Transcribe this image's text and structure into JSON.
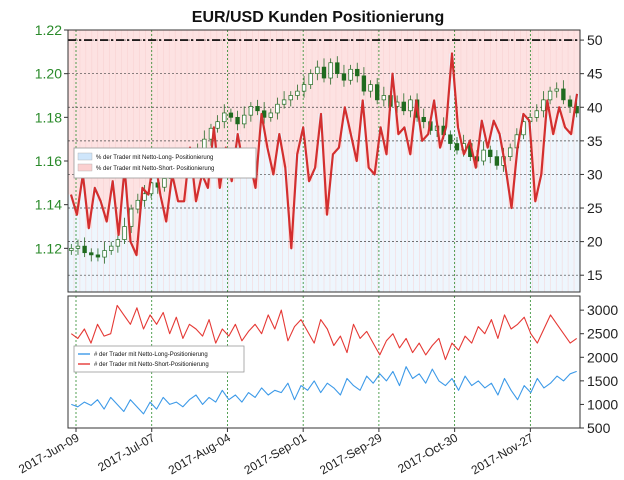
{
  "chart_data": [
    {
      "type": "line",
      "title": "EUR/USD Kunden Positionierung",
      "x_ticks": [
        "2017-Jun-09",
        "2017-Jul-07",
        "2017-Aug-04",
        "2017-Sep-01",
        "2017-Sep-29",
        "2017-Oct-30",
        "2017-Nov-27"
      ],
      "left_axis": {
        "ylim": [
          1.1,
          1.22
        ],
        "ticks": [
          "1.12",
          "1.14",
          "1.16",
          "1.18",
          "1.20",
          "1.22"
        ],
        "color": "#2a8a2a"
      },
      "right_axis": {
        "ylim": [
          12.5,
          51.5
        ],
        "ticks": [
          "15",
          "20",
          "25",
          "30",
          "35",
          "40",
          "45",
          "50"
        ]
      },
      "legend": {
        "placement": "center-left",
        "entries": [
          {
            "label": "% der Trader mit Netto-Long- Positionierung",
            "color": "#cfe6fb"
          },
          {
            "label": "% der Trader mit Netto-Short- Positionierung",
            "color": "#fbd0d0"
          }
        ]
      },
      "price_series": {
        "name": "EUR/USD",
        "color": "#2a8a2a",
        "values": [
          1.12,
          1.121,
          1.118,
          1.117,
          1.116,
          1.119,
          1.121,
          1.124,
          1.13,
          1.138,
          1.142,
          1.145,
          1.15,
          1.148,
          1.152,
          1.158,
          1.16,
          1.162,
          1.16,
          1.165,
          1.17,
          1.175,
          1.178,
          1.182,
          1.18,
          1.177,
          1.181,
          1.185,
          1.183,
          1.18,
          1.182,
          1.186,
          1.188,
          1.19,
          1.192,
          1.195,
          1.2,
          1.203,
          1.198,
          1.205,
          1.2,
          1.197,
          1.202,
          1.199,
          1.192,
          1.195,
          1.188,
          1.19,
          1.185,
          1.187,
          1.183,
          1.188,
          1.18,
          1.178,
          1.174,
          1.176,
          1.172,
          1.168,
          1.165,
          1.168,
          1.162,
          1.16,
          1.165,
          1.162,
          1.158,
          1.162,
          1.166,
          1.172,
          1.178,
          1.18,
          1.183,
          1.188,
          1.192,
          1.193,
          1.188,
          1.185,
          1.182
        ]
      },
      "short_pct_series": {
        "name": "% der Trader mit Netto-Short- Positionierung",
        "color": "#d32f2f",
        "values": [
          27,
          24,
          30,
          22,
          28,
          26,
          23,
          29,
          21,
          31,
          20,
          18,
          28,
          27,
          33,
          27,
          23,
          30,
          26,
          26,
          34,
          26,
          30,
          28,
          37,
          28,
          34,
          29,
          36,
          31,
          32,
          28,
          39,
          34,
          30,
          36,
          31,
          19,
          33,
          37,
          29,
          31,
          39,
          24,
          33,
          34,
          40,
          36,
          32,
          41,
          31,
          30,
          37,
          33,
          45,
          36,
          37,
          33,
          41,
          35,
          36,
          41,
          34,
          37,
          48,
          37,
          33,
          35,
          31,
          38,
          34,
          38,
          36,
          31,
          25,
          34,
          39,
          38,
          26,
          30,
          41,
          36,
          40,
          37,
          36,
          42
        ]
      },
      "reference_line": {
        "value": 50,
        "style": "dash-dot"
      }
    },
    {
      "type": "line",
      "right_axis": {
        "ylim": [
          500,
          3300
        ],
        "ticks": [
          "500",
          "1000",
          "1500",
          "2000",
          "2500",
          "3000"
        ]
      },
      "legend": {
        "placement": "center-left",
        "entries": [
          {
            "label": "# der Trader mit Netto-Long-Positionierung",
            "color": "#3d9ae8"
          },
          {
            "label": "# der Trader mit Netto-Short-Positionierung",
            "color": "#e53935"
          }
        ]
      },
      "series": [
        {
          "name": "# der Trader mit Netto-Long-Positionierung",
          "color": "#3d9ae8",
          "values": [
            1000,
            950,
            1050,
            980,
            1100,
            900,
            1150,
            1000,
            850,
            1100,
            950,
            800,
            1050,
            900,
            1150,
            1000,
            1050,
            950,
            1100,
            1200,
            1000,
            1150,
            1050,
            1300,
            1100,
            1200,
            1050,
            1250,
            1150,
            1350,
            1200,
            1300,
            1250,
            1450,
            1100,
            1400,
            1300,
            1500,
            1250,
            1450,
            1350,
            1200,
            1550,
            1400,
            1300,
            1600,
            1450,
            1650,
            1500,
            1700,
            1400,
            1800,
            1550,
            1650,
            1450,
            1750,
            1500,
            1400,
            1550,
            1300,
            1600,
            1400,
            1500,
            1350,
            1450,
            1200,
            1550,
            1300,
            1100,
            1400,
            1250,
            1550,
            1350,
            1450,
            1600,
            1500,
            1650,
            1700
          ]
        },
        {
          "name": "# der Trader mit Netto-Short-Positionierung",
          "color": "#e53935",
          "values": [
            2500,
            2400,
            2600,
            2300,
            2700,
            2450,
            2500,
            3100,
            2900,
            2700,
            3050,
            2600,
            2900,
            2700,
            2950,
            2500,
            2850,
            2400,
            2700,
            2600,
            2450,
            2800,
            2300,
            2600,
            2450,
            2700,
            2350,
            2550,
            2700,
            2500,
            2900,
            2600,
            3000,
            2350,
            2650,
            2800,
            2550,
            2300,
            2800,
            2600,
            2250,
            2450,
            2100,
            2700,
            2400,
            2550,
            2300,
            2050,
            2350,
            2500,
            2200,
            2400,
            2100,
            2300,
            2050,
            2250,
            2400,
            1950,
            2300,
            2150,
            2450,
            2300,
            2650,
            2500,
            2800,
            2400,
            2900,
            2600,
            2700,
            2850,
            2500,
            2300,
            2600,
            2900,
            2700,
            2500,
            2300,
            2400
          ]
        }
      ]
    }
  ]
}
